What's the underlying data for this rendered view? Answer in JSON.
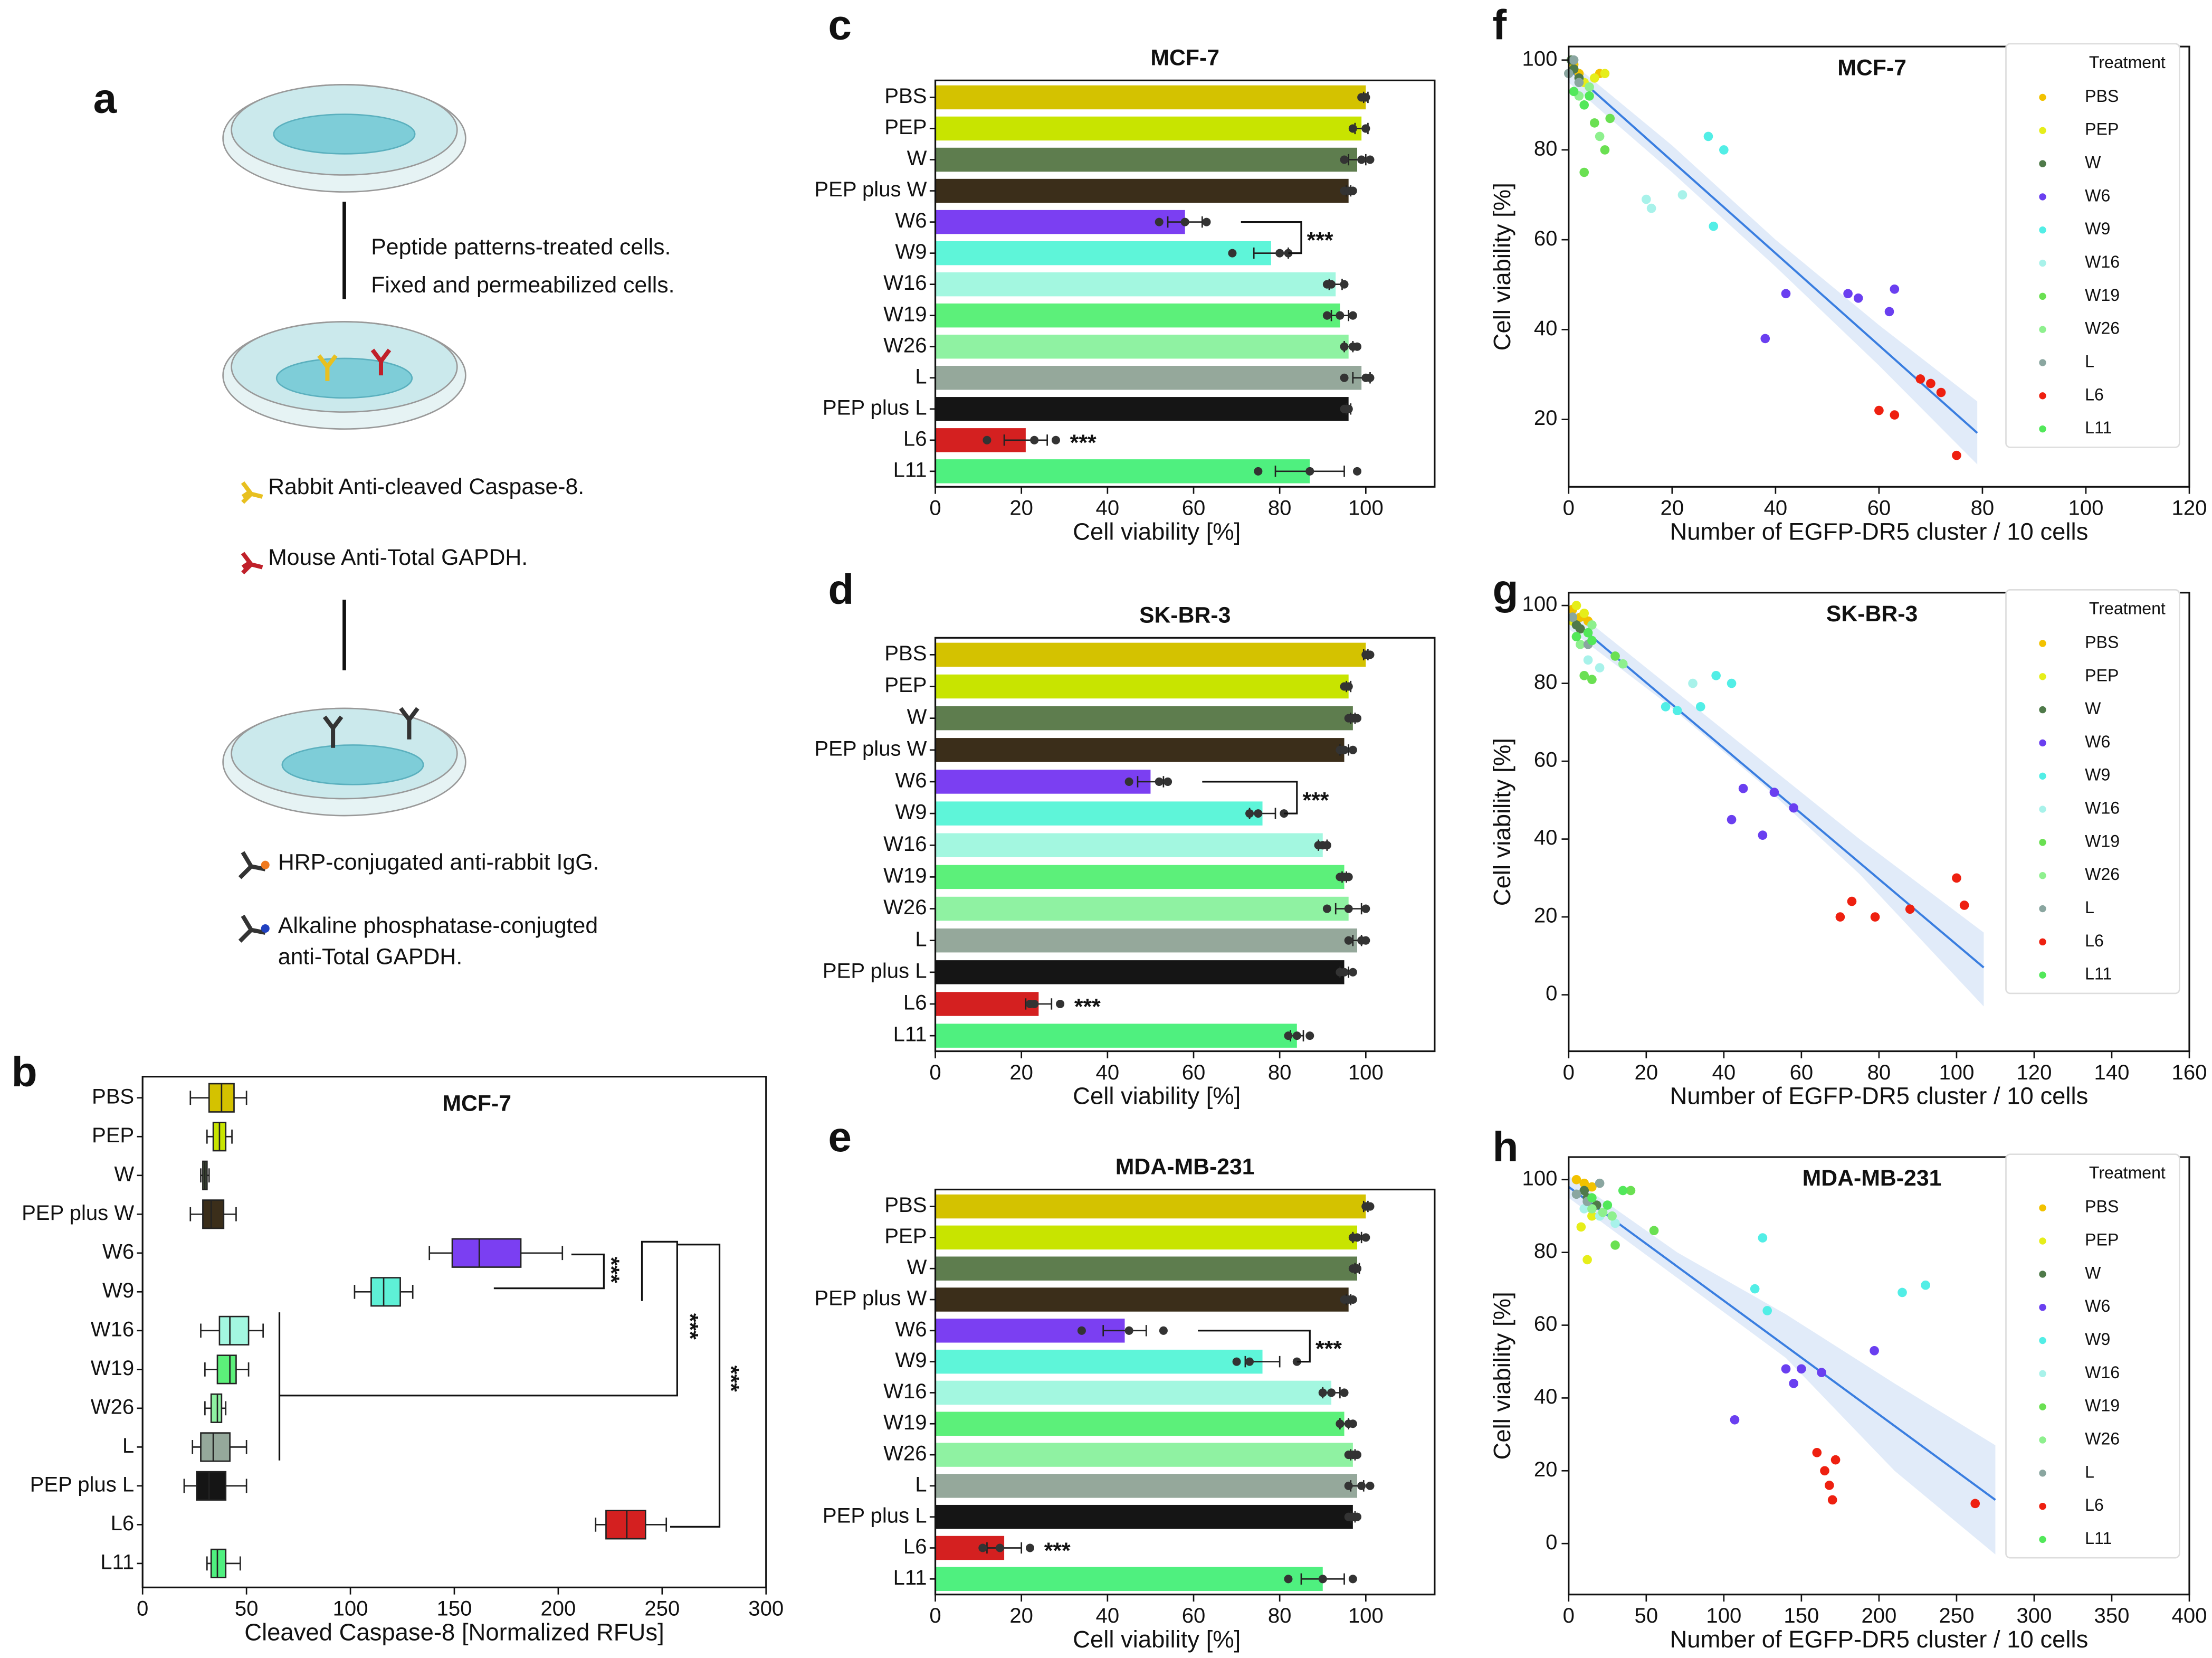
{
  "diagram": {
    "label": "a",
    "texts": [
      "Peptide patterns-treated cells.",
      "Fixed and permeabilized cells.",
      "Rabbit Anti-cleaved Caspase-8.",
      "Mouse Anti-Total GAPDH.",
      "HRP-conjugated anti-rabbit IgG.",
      "Alkaline phosphatase-conjugted",
      "anti-Total GAPDH."
    ]
  },
  "chart_data": [
    {
      "type": "box",
      "label": "b",
      "title": "MCF-7",
      "xlabel": "Cleaved Caspase-8 [Normalized RFUs]",
      "categories": [
        "PBS",
        "PEP",
        "W",
        "PEP plus W",
        "W6",
        "W9",
        "W16",
        "W19",
        "W26",
        "L",
        "PEP plus L",
        "L6",
        "L11"
      ],
      "colors": [
        "#d4c200",
        "#c8e400",
        "#5e7d4e",
        "#3b2e1a",
        "#7b3ff2",
        "#5ef0d6",
        "#a3f7e0",
        "#5cf07a",
        "#8ff2a2",
        "#95a89b",
        "#151515",
        "#d42020",
        "#4ff07f"
      ],
      "boxes": [
        [
          23,
          32,
          38,
          44,
          50
        ],
        [
          31,
          34,
          37,
          40,
          43
        ],
        [
          28,
          29,
          30,
          31,
          32
        ],
        [
          23,
          29,
          33,
          39,
          45
        ],
        [
          138,
          149,
          162,
          182,
          202
        ],
        [
          102,
          110,
          116,
          124,
          130
        ],
        [
          28,
          37,
          42,
          51,
          58
        ],
        [
          30,
          36,
          42,
          45,
          51
        ],
        [
          30,
          33,
          36,
          38,
          40
        ],
        [
          24,
          28,
          34,
          42,
          50
        ],
        [
          20,
          26,
          32,
          40,
          50
        ],
        [
          218,
          223,
          233,
          242,
          252
        ],
        [
          31,
          33,
          36,
          40,
          47
        ]
      ],
      "xlim": [
        0,
        300
      ],
      "xticks": [
        0,
        50,
        100,
        150,
        200,
        250,
        300
      ],
      "annotations": [
        "***",
        "***",
        "***"
      ]
    },
    {
      "type": "bar",
      "label": "c",
      "title": "MCF-7",
      "xlabel": "Cell viability [%]",
      "categories": [
        "PBS",
        "PEP",
        "W",
        "PEP plus W",
        "W6",
        "W9",
        "W16",
        "W19",
        "W26",
        "L",
        "PEP plus L",
        "L6",
        "L11"
      ],
      "colors": [
        "#d4c200",
        "#c8e400",
        "#5e7d4e",
        "#3b2e1a",
        "#7b3ff2",
        "#5ef5d9",
        "#a3f7e0",
        "#5cf07a",
        "#8ff2a2",
        "#95a89b",
        "#151515",
        "#d42020",
        "#4ff07f"
      ],
      "values": [
        100,
        99,
        98,
        96,
        58,
        78,
        93,
        94,
        96,
        99,
        96,
        21,
        87
      ],
      "errors": [
        0.5,
        1.5,
        2,
        0.5,
        4,
        4,
        1.5,
        2,
        1,
        2,
        0.5,
        5,
        8
      ],
      "points": [
        [
          99,
          100,
          100
        ],
        [
          97,
          100,
          100
        ],
        [
          95,
          99,
          101
        ],
        [
          95,
          96,
          97
        ],
        [
          52,
          58,
          63
        ],
        [
          69,
          80,
          82
        ],
        [
          91,
          92,
          95
        ],
        [
          91,
          94,
          97
        ],
        [
          95,
          97,
          98
        ],
        [
          95,
          100,
          101
        ],
        [
          95,
          96,
          96
        ],
        [
          12,
          23,
          28
        ],
        [
          75,
          87,
          98
        ]
      ],
      "xlim": [
        0,
        116
      ],
      "xticks": [
        0,
        20,
        40,
        60,
        80,
        100
      ],
      "annotations": [
        "***",
        "***"
      ]
    },
    {
      "type": "bar",
      "label": "d",
      "title": "SK-BR-3",
      "xlabel": "Cell viability [%]",
      "categories": [
        "PBS",
        "PEP",
        "W",
        "PEP plus W",
        "W6",
        "W9",
        "W16",
        "W19",
        "W26",
        "L",
        "PEP plus L",
        "L6",
        "L11"
      ],
      "colors": [
        "#d4c200",
        "#c8e400",
        "#5e7d4e",
        "#3b2e1a",
        "#7b3ff2",
        "#5ef5d9",
        "#a3f7e0",
        "#5cf07a",
        "#8ff2a2",
        "#95a89b",
        "#151515",
        "#d42020",
        "#4ff07f"
      ],
      "values": [
        100,
        96,
        97,
        95,
        50,
        76,
        90,
        95,
        96,
        98,
        95,
        24,
        84
      ],
      "errors": [
        0.5,
        0.5,
        0.5,
        1,
        3,
        3,
        1,
        0.5,
        3,
        1,
        1,
        3,
        1.5
      ],
      "points": [
        [
          100,
          100,
          101
        ],
        [
          95,
          96,
          96
        ],
        [
          96,
          97,
          98
        ],
        [
          94,
          95,
          97
        ],
        [
          45,
          52,
          54
        ],
        [
          73,
          75,
          81
        ],
        [
          89,
          90,
          91
        ],
        [
          94,
          95,
          96
        ],
        [
          91,
          96,
          100
        ],
        [
          96,
          99,
          100
        ],
        [
          94,
          95,
          97
        ],
        [
          22,
          23,
          29
        ],
        [
          82,
          84,
          87
        ]
      ],
      "xlim": [
        0,
        116
      ],
      "xticks": [
        0,
        20,
        40,
        60,
        80,
        100
      ],
      "annotations": [
        "***",
        "***"
      ]
    },
    {
      "type": "bar",
      "label": "e",
      "title": "MDA-MB-231",
      "xlabel": "Cell viability [%]",
      "categories": [
        "PBS",
        "PEP",
        "W",
        "PEP plus W",
        "W6",
        "W9",
        "W16",
        "W19",
        "W26",
        "L",
        "PEP plus L",
        "L6",
        "L11"
      ],
      "colors": [
        "#d4c200",
        "#c8e400",
        "#5e7d4e",
        "#3b2e1a",
        "#7b3ff2",
        "#5ef5d9",
        "#a3f7e0",
        "#5cf07a",
        "#8ff2a2",
        "#95a89b",
        "#151515",
        "#d42020",
        "#4ff07f"
      ],
      "values": [
        100,
        98,
        98,
        96,
        44,
        76,
        92,
        95,
        97,
        98,
        97,
        16,
        90
      ],
      "errors": [
        0.5,
        1,
        0.5,
        0.5,
        5,
        4,
        2,
        1,
        0.5,
        1.5,
        0.5,
        4,
        5
      ],
      "points": [
        [
          100,
          100,
          101
        ],
        [
          97,
          98,
          100
        ],
        [
          97,
          98,
          98
        ],
        [
          95,
          96,
          97
        ],
        [
          34,
          45,
          53
        ],
        [
          70,
          73,
          84
        ],
        [
          90,
          92,
          95
        ],
        [
          94,
          96,
          97
        ],
        [
          96,
          97,
          98
        ],
        [
          96,
          99,
          101
        ],
        [
          96,
          97,
          98
        ],
        [
          11,
          15,
          22
        ],
        [
          82,
          90,
          97
        ]
      ],
      "xlim": [
        0,
        116
      ],
      "xticks": [
        0,
        20,
        40,
        60,
        80,
        100
      ],
      "annotations": [
        "***",
        "***"
      ]
    },
    {
      "type": "scatter",
      "label": "f",
      "title": "MCF-7",
      "xlabel": "Number of EGFP-DR5 cluster / 10 cells",
      "ylabel": "Cell viability [%]",
      "legend_title": "Treatment",
      "series": [
        {
          "name": "PBS",
          "color": "#f2c200",
          "x": [
            1,
            2,
            6
          ],
          "y": [
            99,
            97,
            97
          ]
        },
        {
          "name": "PEP",
          "color": "#e6ee1a",
          "x": [
            3,
            5,
            7
          ],
          "y": [
            95,
            96,
            97
          ]
        },
        {
          "name": "W",
          "color": "#4f7a4a",
          "x": [
            1,
            2,
            0.5
          ],
          "y": [
            98,
            96,
            100
          ]
        },
        {
          "name": "W6",
          "color": "#6a3ff0",
          "x": [
            42,
            54,
            56,
            62,
            63,
            38
          ],
          "y": [
            48,
            48,
            47,
            44,
            49,
            38
          ]
        },
        {
          "name": "W9",
          "color": "#52eee6",
          "x": [
            27,
            30,
            28
          ],
          "y": [
            83,
            80,
            63
          ]
        },
        {
          "name": "W16",
          "color": "#a8f2ea",
          "x": [
            15,
            16,
            22
          ],
          "y": [
            69,
            67,
            70
          ]
        },
        {
          "name": "W19",
          "color": "#6ae052",
          "x": [
            3,
            5,
            7,
            8
          ],
          "y": [
            75,
            86,
            80,
            87
          ]
        },
        {
          "name": "W26",
          "color": "#8ef08e",
          "x": [
            2,
            4,
            6
          ],
          "y": [
            92,
            94,
            83
          ]
        },
        {
          "name": "L",
          "color": "#8aa6a0",
          "x": [
            0,
            1,
            2
          ],
          "y": [
            97,
            100,
            95
          ]
        },
        {
          "name": "L6",
          "color": "#ee2010",
          "x": [
            60,
            63,
            68,
            70,
            72,
            75
          ],
          "y": [
            22,
            21,
            29,
            28,
            26,
            12
          ]
        },
        {
          "name": "L11",
          "color": "#52e85a",
          "x": [
            1,
            3,
            4
          ],
          "y": [
            93,
            90,
            92
          ]
        }
      ],
      "fit": {
        "x": [
          0,
          79
        ],
        "y": [
          98,
          17
        ]
      },
      "band": {
        "x": [
          0,
          20,
          40,
          60,
          79
        ],
        "lower": [
          95,
          75,
          54,
          32,
          10
        ],
        "upper": [
          100,
          81,
          60,
          41,
          24
        ]
      },
      "xlim": [
        0,
        120
      ],
      "ylim": [
        5,
        103
      ],
      "xticks": [
        0,
        20,
        40,
        60,
        80,
        100,
        120
      ],
      "yticks": [
        20,
        40,
        60,
        80,
        100
      ]
    },
    {
      "type": "scatter",
      "label": "g",
      "title": "SK-BR-3",
      "xlabel": "Number of EGFP-DR5 cluster / 10 cells",
      "ylabel": "Cell viability [%]",
      "legend_title": "Treatment",
      "series": [
        {
          "name": "PBS",
          "color": "#f2c200",
          "x": [
            1,
            3,
            5
          ],
          "y": [
            99,
            97,
            96
          ]
        },
        {
          "name": "PEP",
          "color": "#e6ee1a",
          "x": [
            2,
            4,
            1
          ],
          "y": [
            100,
            98,
            96
          ]
        },
        {
          "name": "W",
          "color": "#4f7a4a",
          "x": [
            1,
            2,
            3
          ],
          "y": [
            97,
            95,
            94
          ]
        },
        {
          "name": "W6",
          "color": "#6a3ff0",
          "x": [
            42,
            45,
            50,
            53,
            58
          ],
          "y": [
            45,
            53,
            41,
            52,
            48
          ]
        },
        {
          "name": "W9",
          "color": "#52eee6",
          "x": [
            25,
            28,
            34,
            38,
            42
          ],
          "y": [
            74,
            73,
            74,
            82,
            80
          ]
        },
        {
          "name": "W16",
          "color": "#a8f2ea",
          "x": [
            5,
            8,
            32
          ],
          "y": [
            86,
            84,
            80
          ]
        },
        {
          "name": "W19",
          "color": "#6ae052",
          "x": [
            4,
            6,
            12
          ],
          "y": [
            82,
            81,
            87
          ]
        },
        {
          "name": "W26",
          "color": "#8ef08e",
          "x": [
            3,
            6,
            14
          ],
          "y": [
            90,
            95,
            85
          ]
        },
        {
          "name": "L",
          "color": "#8aa6a0",
          "x": [
            1,
            2,
            5
          ],
          "y": [
            97,
            92,
            90
          ]
        },
        {
          "name": "L6",
          "color": "#ee2010",
          "x": [
            70,
            73,
            79,
            88,
            100,
            102
          ],
          "y": [
            20,
            24,
            20,
            22,
            30,
            23
          ]
        },
        {
          "name": "L11",
          "color": "#52e85a",
          "x": [
            2,
            5,
            6
          ],
          "y": [
            92,
            93,
            91
          ]
        }
      ],
      "fit": {
        "x": [
          0,
          107
        ],
        "y": [
          97,
          7
        ]
      },
      "band": {
        "x": [
          0,
          25,
          50,
          75,
          107
        ],
        "lower": [
          94,
          75,
          54,
          31,
          -3
        ],
        "upper": [
          100,
          80,
          60,
          40,
          16
        ]
      },
      "xlim": [
        0,
        160
      ],
      "ylim": [
        -14.5,
        103.3
      ],
      "xticks": [
        0,
        20,
        40,
        60,
        80,
        100,
        120,
        140,
        160
      ],
      "yticks": [
        0,
        20,
        40,
        60,
        80,
        100
      ]
    },
    {
      "type": "scatter",
      "label": "h",
      "title": "MDA-MB-231",
      "xlabel": "Number of EGFP-DR5 cluster / 10 cells",
      "ylabel": "Cell viability [%]",
      "legend_title": "Treatment",
      "series": [
        {
          "name": "PBS",
          "color": "#f2c200",
          "x": [
            5,
            10,
            15
          ],
          "y": [
            100,
            99,
            98
          ]
        },
        {
          "name": "PEP",
          "color": "#e6ee1a",
          "x": [
            8,
            12,
            15
          ],
          "y": [
            87,
            78,
            90
          ]
        },
        {
          "name": "W",
          "color": "#4f7a4a",
          "x": [
            10,
            12,
            18
          ],
          "y": [
            97,
            95,
            93
          ]
        },
        {
          "name": "W6",
          "color": "#6a3ff0",
          "x": [
            107,
            140,
            145,
            150,
            163,
            197
          ],
          "y": [
            34,
            48,
            44,
            48,
            47,
            53
          ]
        },
        {
          "name": "W9",
          "color": "#52eee6",
          "x": [
            125,
            120,
            128,
            215,
            230
          ],
          "y": [
            84,
            70,
            64,
            69,
            71
          ]
        },
        {
          "name": "W16",
          "color": "#a8f2ea",
          "x": [
            10,
            20,
            30
          ],
          "y": [
            92,
            90,
            88
          ]
        },
        {
          "name": "W19",
          "color": "#6ae052",
          "x": [
            30,
            40,
            55
          ],
          "y": [
            82,
            97,
            86
          ]
        },
        {
          "name": "W26",
          "color": "#8ef08e",
          "x": [
            15,
            22,
            28
          ],
          "y": [
            92,
            91,
            90
          ]
        },
        {
          "name": "L",
          "color": "#8aa6a0",
          "x": [
            5,
            12,
            20
          ],
          "y": [
            96,
            94,
            99
          ]
        },
        {
          "name": "L6",
          "color": "#ee2010",
          "x": [
            160,
            165,
            168,
            170,
            172,
            262
          ],
          "y": [
            25,
            20,
            16,
            12,
            23,
            11
          ]
        },
        {
          "name": "L11",
          "color": "#52e85a",
          "x": [
            15,
            25,
            35
          ],
          "y": [
            95,
            93,
            97
          ]
        }
      ],
      "fit": {
        "x": [
          0,
          275
        ],
        "y": [
          98,
          12
        ]
      },
      "band": {
        "x": [
          0,
          70,
          140,
          210,
          275
        ],
        "lower": [
          95,
          73,
          51,
          20,
          -3
        ],
        "upper": [
          101,
          80,
          63,
          44,
          27
        ]
      },
      "xlim": [
        0,
        400
      ],
      "ylim": [
        -14,
        106.2
      ],
      "xticks": [
        0,
        50,
        100,
        150,
        200,
        250,
        300,
        350,
        400
      ],
      "yticks": [
        0,
        20,
        40,
        60,
        80,
        100
      ]
    }
  ]
}
